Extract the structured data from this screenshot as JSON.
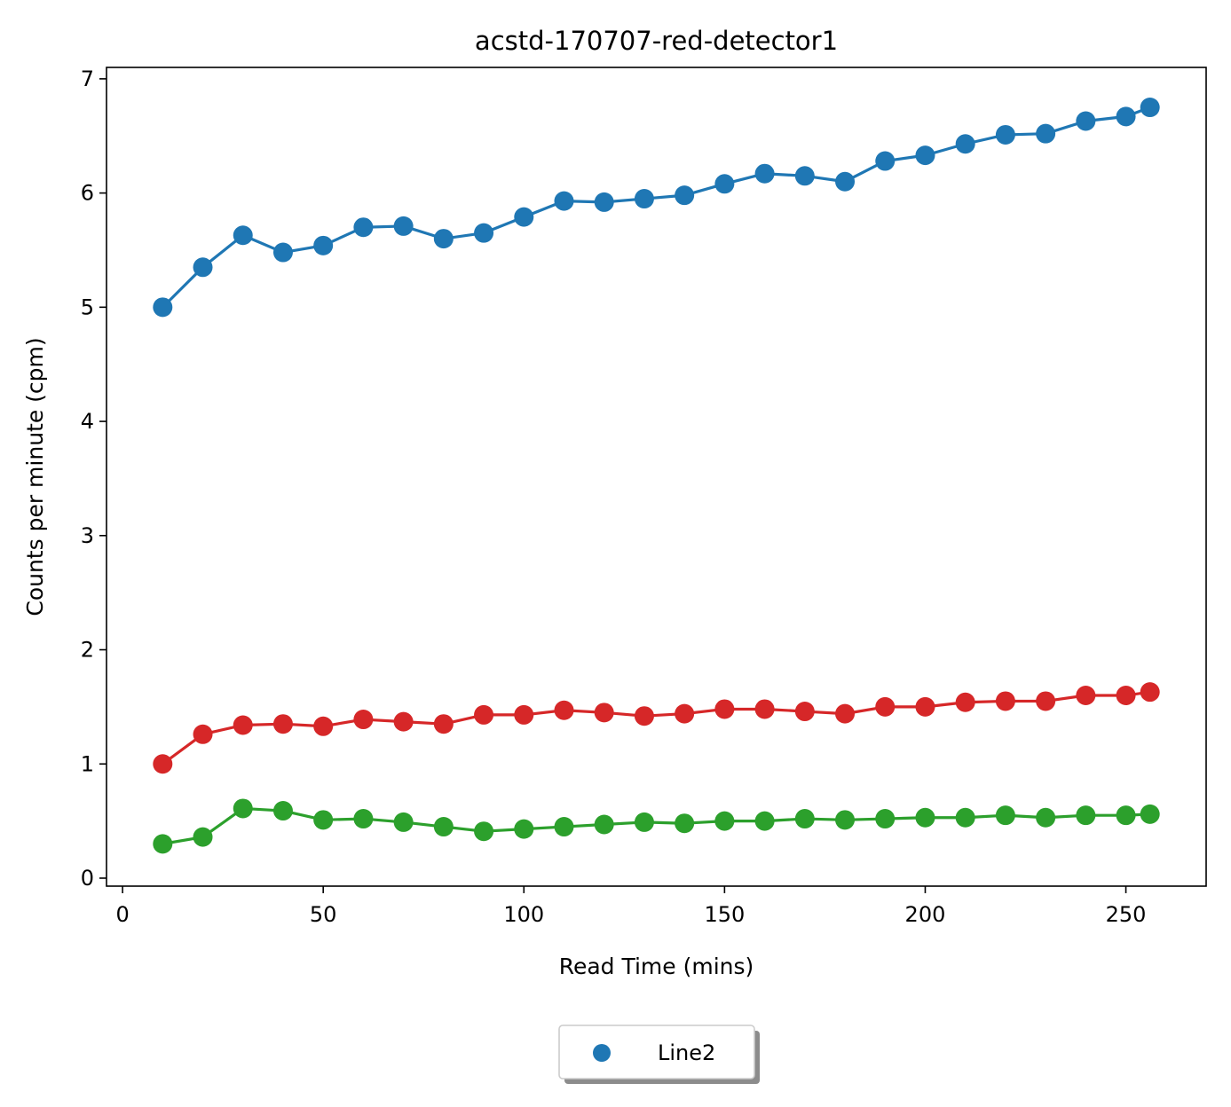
{
  "chart_data": {
    "type": "line",
    "title": "acstd-170707-red-detector1",
    "xlabel": "Read Time (mins)",
    "ylabel": "Counts per minute (cpm)",
    "xlim": [
      -4,
      270
    ],
    "ylim": [
      -0.07,
      7.1
    ],
    "xticks": [
      0,
      50,
      100,
      150,
      200,
      250
    ],
    "yticks": [
      0,
      1,
      2,
      3,
      4,
      5,
      6,
      7
    ],
    "grid": false,
    "legend": {
      "placement": "bottom-center",
      "entries": [
        "Line2"
      ]
    },
    "x": [
      10,
      20,
      30,
      40,
      50,
      60,
      70,
      80,
      90,
      100,
      110,
      120,
      130,
      140,
      150,
      160,
      170,
      180,
      190,
      200,
      210,
      220,
      230,
      240,
      250,
      256
    ],
    "series": [
      {
        "name": "Line2",
        "color": "#1f77b4",
        "values": [
          5.0,
          5.35,
          5.63,
          5.48,
          5.54,
          5.7,
          5.71,
          5.6,
          5.65,
          5.79,
          5.93,
          5.92,
          5.95,
          5.98,
          6.08,
          6.17,
          6.15,
          6.1,
          6.28,
          6.33,
          6.43,
          6.51,
          6.52,
          6.63,
          6.67,
          6.75
        ]
      },
      {
        "color": "#d62728",
        "values": [
          1.0,
          1.26,
          1.34,
          1.35,
          1.33,
          1.39,
          1.37,
          1.35,
          1.43,
          1.43,
          1.47,
          1.45,
          1.42,
          1.44,
          1.48,
          1.48,
          1.46,
          1.44,
          1.5,
          1.5,
          1.54,
          1.55,
          1.55,
          1.6,
          1.6,
          1.63
        ]
      },
      {
        "color": "#2ca02c",
        "values": [
          0.3,
          0.36,
          0.61,
          0.59,
          0.51,
          0.52,
          0.49,
          0.45,
          0.41,
          0.43,
          0.45,
          0.47,
          0.49,
          0.48,
          0.5,
          0.5,
          0.52,
          0.51,
          0.52,
          0.53,
          0.53,
          0.55,
          0.53,
          0.55,
          0.55,
          0.56
        ]
      }
    ]
  }
}
